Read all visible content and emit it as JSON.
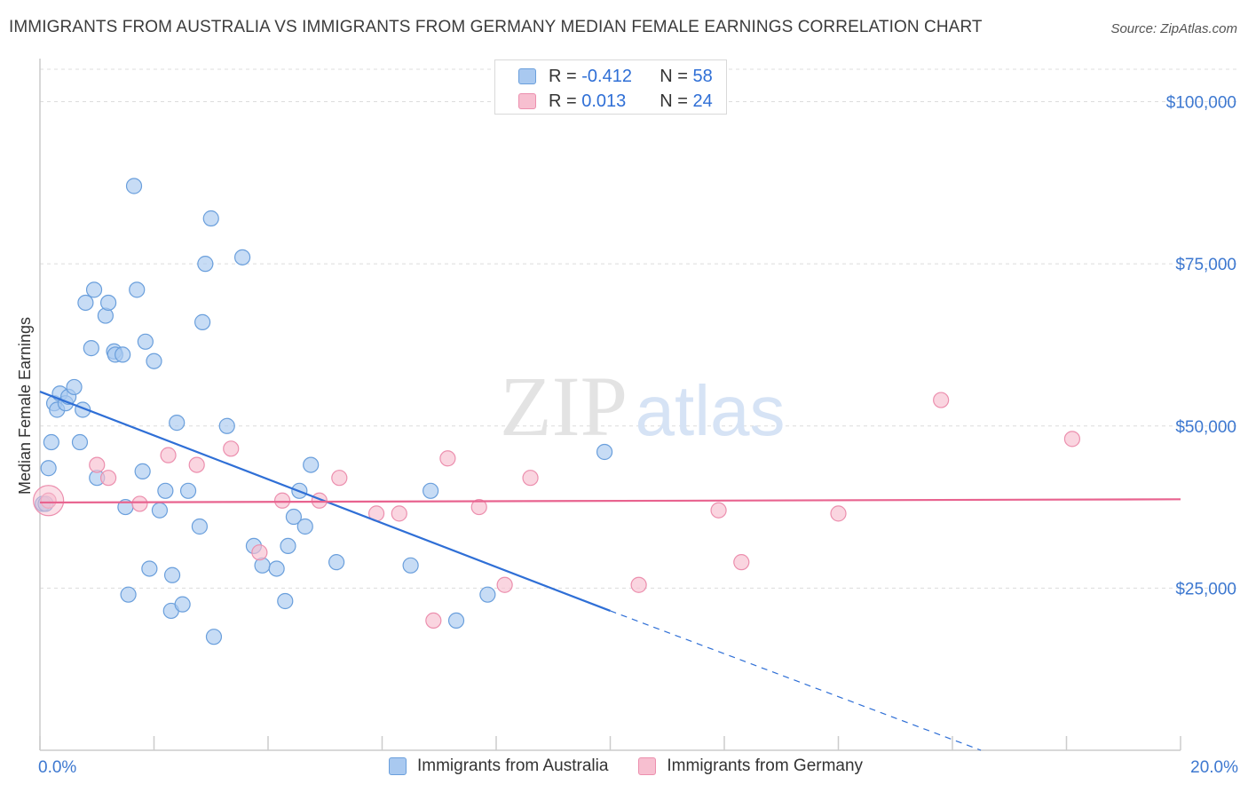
{
  "header": {
    "title": "IMMIGRANTS FROM AUSTRALIA VS IMMIGRANTS FROM GERMANY MEDIAN FEMALE EARNINGS CORRELATION CHART",
    "source": "Source: ZipAtlas.com"
  },
  "watermark": {
    "part1": "ZIP",
    "part2": "atlas"
  },
  "legend": {
    "australia": {
      "r_label": "R =",
      "r_value": "-0.412",
      "n_label": "N =",
      "n_value": "58"
    },
    "germany": {
      "r_label": "R =",
      "r_value": "0.013",
      "n_label": "N =",
      "n_value": "24"
    }
  },
  "bottom_legend": {
    "australia": "Immigrants from Australia",
    "germany": "Immigrants from Germany"
  },
  "colors": {
    "australia_fill": "#a9c9f0",
    "australia_stroke": "#6a9fdc",
    "australia_line": "#2f6fd6",
    "germany_fill": "#f7bfd0",
    "germany_stroke": "#ec8fae",
    "germany_line": "#e8638f",
    "axis_label": "#3d78d0",
    "grid": "#dcdcdc"
  },
  "chart_data": {
    "type": "scatter",
    "title": "IMMIGRANTS FROM AUSTRALIA VS IMMIGRANTS FROM GERMANY MEDIAN FEMALE EARNINGS CORRELATION CHART",
    "xlabel": "",
    "ylabel": "Median Female Earnings",
    "xlim": [
      0,
      20
    ],
    "ylim": [
      0,
      105000
    ],
    "x_tick_labels": [
      {
        "value": 0,
        "label": "0.0%"
      },
      {
        "value": 20,
        "label": "20.0%"
      }
    ],
    "y_ticks": [
      {
        "value": 25000,
        "label": "$25,000"
      },
      {
        "value": 50000,
        "label": "$50,000"
      },
      {
        "value": 75000,
        "label": "$75,000"
      },
      {
        "value": 100000,
        "label": "$100,000"
      }
    ],
    "grid": true,
    "legend_position": "top-center",
    "series": [
      {
        "name": "Immigrants from Australia",
        "color": "#6a9fdc",
        "points": [
          [
            0.05,
            38000
          ],
          [
            0.15,
            43500
          ],
          [
            0.2,
            47500
          ],
          [
            0.25,
            53500
          ],
          [
            0.3,
            52500
          ],
          [
            0.35,
            55000
          ],
          [
            0.45,
            53500
          ],
          [
            0.5,
            54500
          ],
          [
            0.6,
            56000
          ],
          [
            0.7,
            47500
          ],
          [
            0.75,
            52500
          ],
          [
            0.8,
            69000
          ],
          [
            0.9,
            62000
          ],
          [
            0.95,
            71000
          ],
          [
            1.0,
            42000
          ],
          [
            1.15,
            67000
          ],
          [
            1.2,
            69000
          ],
          [
            1.3,
            61500
          ],
          [
            1.32,
            61000
          ],
          [
            1.45,
            61000
          ],
          [
            1.5,
            37500
          ],
          [
            1.55,
            24000
          ],
          [
            1.65,
            87000
          ],
          [
            1.7,
            71000
          ],
          [
            1.8,
            43000
          ],
          [
            1.85,
            63000
          ],
          [
            1.92,
            28000
          ],
          [
            2.0,
            60000
          ],
          [
            2.1,
            37000
          ],
          [
            2.2,
            40000
          ],
          [
            2.3,
            21500
          ],
          [
            2.32,
            27000
          ],
          [
            2.4,
            50500
          ],
          [
            2.5,
            22500
          ],
          [
            2.6,
            40000
          ],
          [
            2.8,
            34500
          ],
          [
            2.85,
            66000
          ],
          [
            2.9,
            75000
          ],
          [
            3.0,
            82000
          ],
          [
            3.05,
            17500
          ],
          [
            3.28,
            50000
          ],
          [
            3.55,
            76000
          ],
          [
            3.75,
            31500
          ],
          [
            3.9,
            28500
          ],
          [
            4.15,
            28000
          ],
          [
            4.3,
            23000
          ],
          [
            4.35,
            31500
          ],
          [
            4.45,
            36000
          ],
          [
            4.55,
            40000
          ],
          [
            4.65,
            34500
          ],
          [
            4.75,
            44000
          ],
          [
            5.2,
            29000
          ],
          [
            6.5,
            28500
          ],
          [
            6.85,
            40000
          ],
          [
            7.3,
            20000
          ],
          [
            7.85,
            24000
          ],
          [
            9.9,
            46000
          ],
          [
            0.1,
            38000
          ]
        ],
        "trend_line": {
          "x": [
            0,
            10
          ],
          "y": [
            55300,
            21500
          ],
          "extends_dashed_to": [
            16.5,
            0
          ]
        }
      },
      {
        "name": "Immigrants from Germany",
        "color": "#ec8fae",
        "points": [
          [
            0.15,
            38500
          ],
          [
            1.0,
            44000
          ],
          [
            1.2,
            42000
          ],
          [
            1.75,
            38000
          ],
          [
            2.25,
            45500
          ],
          [
            2.75,
            44000
          ],
          [
            3.35,
            46500
          ],
          [
            3.85,
            30500
          ],
          [
            4.25,
            38500
          ],
          [
            4.9,
            38500
          ],
          [
            5.25,
            42000
          ],
          [
            5.9,
            36500
          ],
          [
            6.3,
            36500
          ],
          [
            6.9,
            20000
          ],
          [
            7.15,
            45000
          ],
          [
            7.7,
            37500
          ],
          [
            8.15,
            25500
          ],
          [
            8.6,
            42000
          ],
          [
            10.5,
            25500
          ],
          [
            11.9,
            37000
          ],
          [
            12.3,
            29000
          ],
          [
            14.0,
            36500
          ],
          [
            15.8,
            54000
          ],
          [
            18.1,
            48000
          ]
        ],
        "trend_line": {
          "x": [
            0,
            20
          ],
          "y": [
            38200,
            38700
          ]
        }
      }
    ]
  }
}
